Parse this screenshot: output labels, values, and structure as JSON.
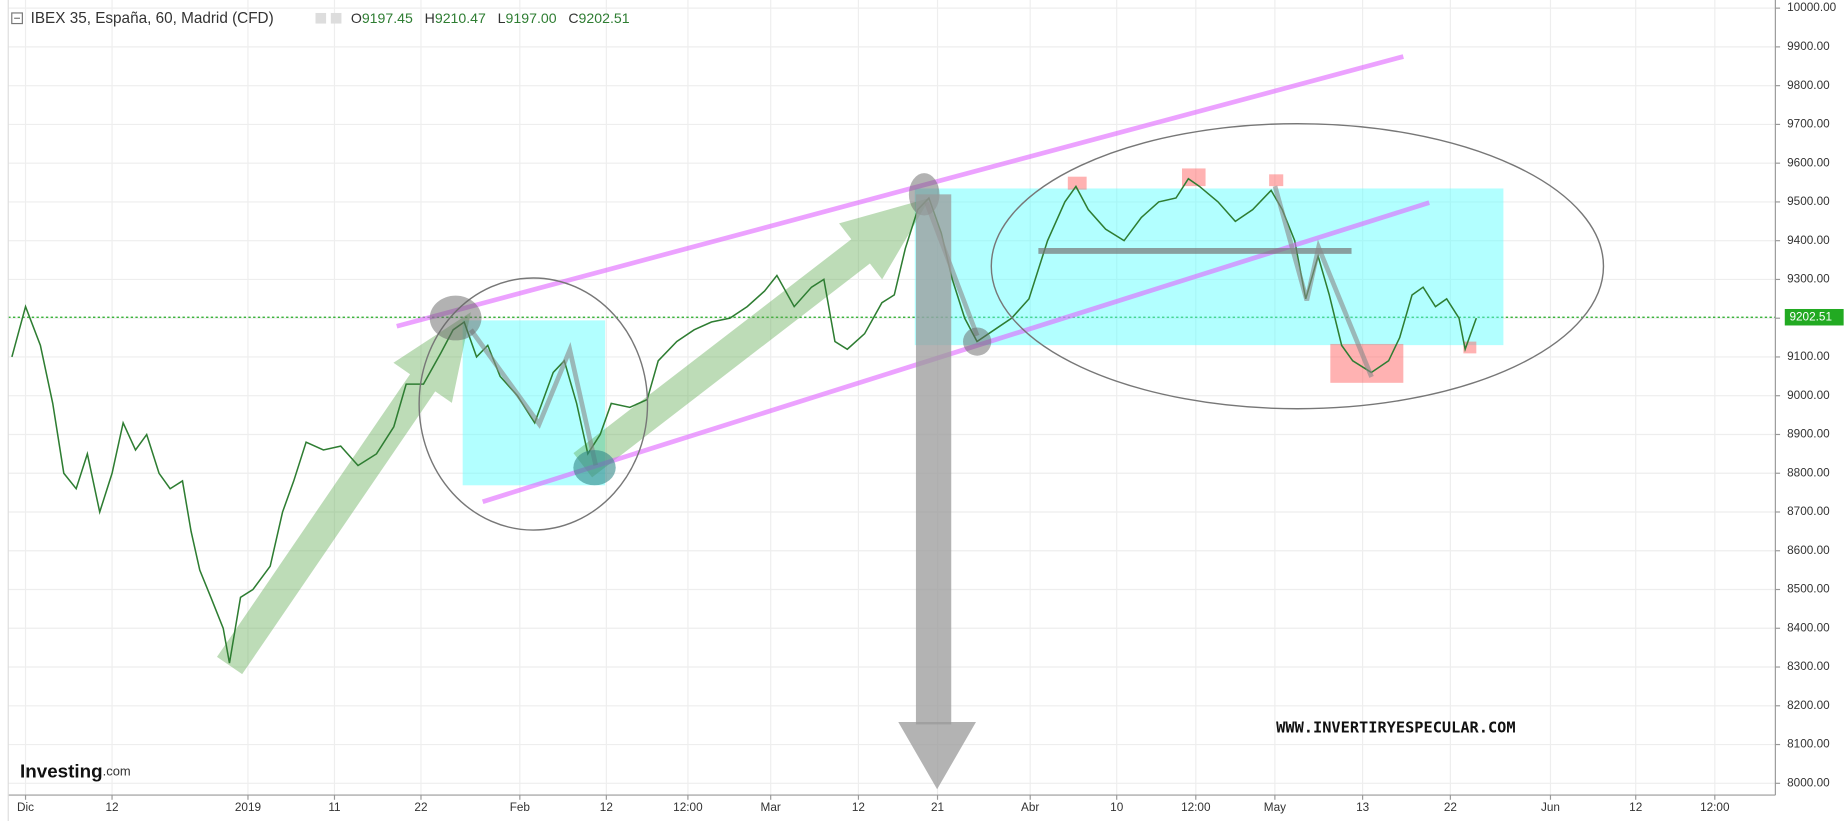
{
  "header": {
    "title": "IBEX 35, España, 60, Madrid (CFD)",
    "ohlc": [
      {
        "key": "O",
        "value": "9197.45"
      },
      {
        "key": "H",
        "value": "9210.47"
      },
      {
        "key": "L",
        "value": "9197.00"
      },
      {
        "key": "C",
        "value": "9202.51"
      }
    ]
  },
  "watermark": "WWW.INVERTIRYESPECULAR.COM",
  "logo": {
    "name": "Investing",
    "suffix": ".com"
  },
  "chart_data": {
    "type": "line",
    "color": "#2e7d32",
    "grid": true,
    "x": [
      -1.1,
      0,
      1.2,
      2.2,
      3.1,
      4.1,
      5.0,
      6.0,
      7.0,
      7.9,
      8.9,
      9.8,
      10.8,
      11.7,
      12.7,
      13.4,
      14.1,
      15.0,
      16.0,
      16.5,
      17.4,
      18.4,
      19.8,
      20.8,
      21.7,
      22.7,
      24.1,
      25.5,
      26.9,
      28.4,
      29.8,
      30.8,
      32.2,
      33.6,
      34.6,
      35.5,
      36.5,
      37.4,
      38.4,
      39.8,
      41.2,
      42.7,
      43.6,
      44.6,
      45.5,
      46.5,
      47.4,
      48.9,
      50.3,
      51.2,
      52.7,
      54.1,
      55.5,
      57.0,
      58.4,
      59.8,
      60.8,
      62.2,
      63.6,
      64.6,
      65.5,
      66.5,
      67.9,
      69.3,
      70.3,
      71.2,
      72.2,
      73.1,
      74.1,
      75.0,
      76.0,
      77.0,
      78.4,
      79.8,
      81.2,
      82.7,
      84.1,
      85.0,
      86.0,
      87.4,
      88.9,
      90.3,
      91.7,
      93.1,
      94.1,
      95.0,
      96.5,
      97.9,
      99.3,
      100.8,
      101.7,
      102.7,
      103.6,
      104.6,
      105.5,
      106.5,
      107.4,
      108.9,
      110.3,
      111.2,
      112.2,
      113.1,
      114.1,
      115.0,
      116.0,
      116.5,
      117.4
    ],
    "values": [
      9100,
      9230,
      9130,
      8980,
      8800,
      8760,
      8850,
      8700,
      8800,
      8930,
      8860,
      8900,
      8800,
      8760,
      8780,
      8650,
      8550,
      8480,
      8400,
      8310,
      8480,
      8500,
      8560,
      8700,
      8780,
      8880,
      8860,
      8870,
      8820,
      8850,
      8920,
      9030,
      9030,
      9110,
      9170,
      9190,
      9100,
      9130,
      9050,
      9000,
      8930,
      9060,
      9090,
      8980,
      8850,
      8900,
      8980,
      8970,
      8990,
      9090,
      9140,
      9170,
      9190,
      9200,
      9230,
      9270,
      9310,
      9230,
      9280,
      9300,
      9140,
      9120,
      9160,
      9240,
      9260,
      9380,
      9480,
      9510,
      9420,
      9300,
      9200,
      9140,
      9170,
      9200,
      9250,
      9400,
      9500,
      9540,
      9480,
      9430,
      9400,
      9460,
      9500,
      9510,
      9560,
      9540,
      9500,
      9450,
      9480,
      9530,
      9480,
      9400,
      9250,
      9360,
      9260,
      9130,
      9090,
      9060,
      9090,
      9150,
      9260,
      9280,
      9230,
      9250,
      9200,
      9120,
      9200
    ],
    "xlim": [
      -1.4,
      141.6
    ],
    "xticks": [
      {
        "value": 0,
        "label": "Dic"
      },
      {
        "value": 7,
        "label": "12"
      },
      {
        "value": 18,
        "label": "2019"
      },
      {
        "value": 25,
        "label": "11"
      },
      {
        "value": 32,
        "label": "22"
      },
      {
        "value": 40,
        "label": "Feb"
      },
      {
        "value": 47,
        "label": "12"
      },
      {
        "value": 53.6,
        "label": "12:00"
      },
      {
        "value": 60.3,
        "label": "Mar"
      },
      {
        "value": 67.4,
        "label": "12"
      },
      {
        "value": 73.8,
        "label": "21"
      },
      {
        "value": 81.3,
        "label": "Abr"
      },
      {
        "value": 88.3,
        "label": "10"
      },
      {
        "value": 94.7,
        "label": "12:00"
      },
      {
        "value": 101.1,
        "label": "May"
      },
      {
        "value": 108.2,
        "label": "13"
      },
      {
        "value": 115.3,
        "label": "22"
      },
      {
        "value": 123.4,
        "label": "Jun"
      },
      {
        "value": 130.3,
        "label": "12"
      },
      {
        "value": 136.7,
        "label": "12:00"
      }
    ],
    "ylim": [
      7924,
      10021
    ],
    "yticks": [
      {
        "value": 8000,
        "label": "8000.00"
      },
      {
        "value": 8100,
        "label": "8100.00"
      },
      {
        "value": 8200,
        "label": "8200.00"
      },
      {
        "value": 8300,
        "label": "8300.00"
      },
      {
        "value": 8400,
        "label": "8400.00"
      },
      {
        "value": 8500,
        "label": "8500.00"
      },
      {
        "value": 8600,
        "label": "8600.00"
      },
      {
        "value": 8700,
        "label": "8700.00"
      },
      {
        "value": 8800,
        "label": "8800.00"
      },
      {
        "value": 8900,
        "label": "8900.00"
      },
      {
        "value": 9000,
        "label": "9000.00"
      },
      {
        "value": 9100,
        "label": "9100.00"
      },
      {
        "value": 9200,
        "label": "9200.00"
      },
      {
        "value": 9300,
        "label": "9300.00"
      },
      {
        "value": 9400,
        "label": "9400.00"
      },
      {
        "value": 9500,
        "label": "9500.00"
      },
      {
        "value": 9600,
        "label": "9600.00"
      },
      {
        "value": 9700,
        "label": "9700.00"
      },
      {
        "value": 9800,
        "label": "9800.00"
      },
      {
        "value": 9900,
        "label": "9900.00"
      },
      {
        "value": 10000,
        "label": "10000.00"
      }
    ],
    "last_price": {
      "value": 9202.51,
      "label": "9202.51",
      "color": "#22aa22"
    }
  }
}
